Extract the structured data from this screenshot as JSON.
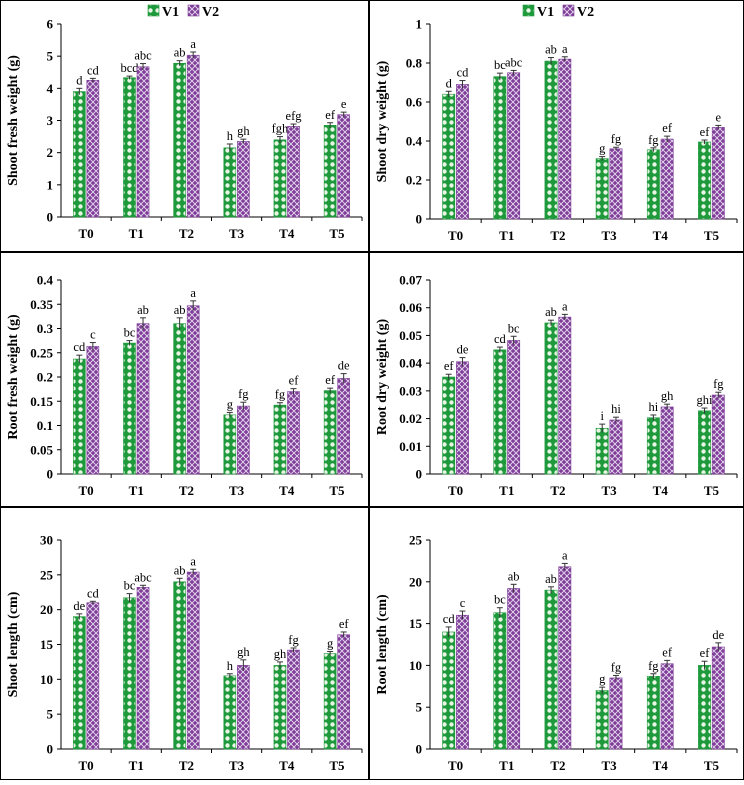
{
  "legend": {
    "series": [
      "V1",
      "V2"
    ]
  },
  "colors": {
    "v1_fill": "#1e9a3c",
    "v1_dot": "#e9f5e4",
    "v2_fill": "#7f3f98",
    "v2_dot": "#e6d6ef",
    "axis": "#000000",
    "frame": "#000000"
  },
  "chart_data": [
    {
      "type": "bar",
      "ylabel": "Shoot fresh weight (g)",
      "categories": [
        "T0",
        "T1",
        "T2",
        "T3",
        "T4",
        "T5"
      ],
      "ylim": [
        0,
        6
      ],
      "yticks": [
        0,
        1,
        2,
        3,
        4,
        5,
        6
      ],
      "tick_labels": [
        "0",
        "1",
        "2",
        "3",
        "4",
        "5",
        "6"
      ],
      "series": [
        {
          "name": "V1",
          "values": [
            3.9,
            4.33,
            4.78,
            2.15,
            2.4,
            2.85
          ],
          "errors": [
            0.1,
            0.05,
            0.08,
            0.12,
            0.1,
            0.08
          ],
          "letters": [
            "d",
            "bcd",
            "ab",
            "h",
            "fgh",
            "ef"
          ]
        },
        {
          "name": "V2",
          "values": [
            4.25,
            4.67,
            5.03,
            2.35,
            2.82,
            3.18
          ],
          "errors": [
            0.06,
            0.1,
            0.1,
            0.07,
            0.07,
            0.08
          ],
          "letters": [
            "cd",
            "abc",
            "a",
            "gh",
            "efg",
            "e"
          ]
        }
      ],
      "show_legend": true
    },
    {
      "type": "bar",
      "ylabel": "Shoot dry weight (g)",
      "categories": [
        "T0",
        "T1",
        "T2",
        "T3",
        "T4",
        "T5"
      ],
      "ylim": [
        0,
        1
      ],
      "yticks": [
        0,
        0.2,
        0.4,
        0.6,
        0.8,
        1
      ],
      "tick_labels": [
        "0",
        "0.2",
        "0.4",
        "0.6",
        "0.8",
        "1"
      ],
      "series": [
        {
          "name": "V1",
          "values": [
            0.64,
            0.73,
            0.81,
            0.31,
            0.355,
            0.395
          ],
          "errors": [
            0.015,
            0.018,
            0.018,
            0.01,
            0.01,
            0.01
          ],
          "letters": [
            "d",
            "bc",
            "ab",
            "g",
            "fg",
            "ef"
          ]
        },
        {
          "name": "V2",
          "values": [
            0.69,
            0.75,
            0.82,
            0.36,
            0.41,
            0.47
          ],
          "errors": [
            0.02,
            0.012,
            0.012,
            0.008,
            0.015,
            0.01
          ],
          "letters": [
            "cd",
            "abc",
            "a",
            "fg",
            "ef",
            "e"
          ]
        }
      ],
      "show_legend": true
    },
    {
      "type": "bar",
      "ylabel": "Root fresh weight (g)",
      "categories": [
        "T0",
        "T1",
        "T2",
        "T3",
        "T4",
        "T5"
      ],
      "ylim": [
        0,
        0.4
      ],
      "yticks": [
        0,
        0.05,
        0.1,
        0.15,
        0.2,
        0.25,
        0.3,
        0.35,
        0.4
      ],
      "tick_labels": [
        "0",
        "0.05",
        "0.1",
        "0.15",
        "0.2",
        "0.25",
        "0.3",
        "0.35",
        "0.4"
      ],
      "series": [
        {
          "name": "V1",
          "values": [
            0.237,
            0.27,
            0.31,
            0.122,
            0.142,
            0.172
          ],
          "errors": [
            0.008,
            0.005,
            0.012,
            0.005,
            0.005,
            0.005
          ],
          "letters": [
            "cd",
            "bc",
            "ab",
            "g",
            "fg",
            "ef"
          ]
        },
        {
          "name": "V2",
          "values": [
            0.263,
            0.31,
            0.347,
            0.14,
            0.17,
            0.197
          ],
          "errors": [
            0.008,
            0.012,
            0.01,
            0.008,
            0.006,
            0.01
          ],
          "letters": [
            "c",
            "ab",
            "a",
            "fg",
            "ef",
            "de"
          ]
        }
      ],
      "show_legend": false
    },
    {
      "type": "bar",
      "ylabel": "Root dry weight (g)",
      "categories": [
        "T0",
        "T1",
        "T2",
        "T3",
        "T4",
        "T5"
      ],
      "ylim": [
        0,
        0.07
      ],
      "yticks": [
        0,
        0.01,
        0.02,
        0.03,
        0.04,
        0.05,
        0.06,
        0.07
      ],
      "tick_labels": [
        "0",
        "0.01",
        "0.02",
        "0.03",
        "0.04",
        "0.05",
        "0.06",
        "0.07"
      ],
      "series": [
        {
          "name": "V1",
          "values": [
            0.035,
            0.0448,
            0.0545,
            0.0165,
            0.0203,
            0.0228
          ],
          "errors": [
            0.001,
            0.001,
            0.001,
            0.0015,
            0.001,
            0.001
          ],
          "letters": [
            "ef",
            "cd",
            "ab",
            "i",
            "hi",
            "ghi"
          ]
        },
        {
          "name": "V2",
          "values": [
            0.0405,
            0.0482,
            0.0566,
            0.0195,
            0.0242,
            0.0285
          ],
          "errors": [
            0.0015,
            0.0015,
            0.001,
            0.001,
            0.001,
            0.001
          ],
          "letters": [
            "de",
            "bc",
            "a",
            "hi",
            "gh",
            "fg"
          ]
        }
      ],
      "show_legend": false
    },
    {
      "type": "bar",
      "ylabel": "Shoot length (cm)",
      "categories": [
        "T0",
        "T1",
        "T2",
        "T3",
        "T4",
        "T5"
      ],
      "ylim": [
        0,
        30
      ],
      "yticks": [
        0,
        5,
        10,
        15,
        20,
        25,
        30
      ],
      "tick_labels": [
        "0",
        "5",
        "10",
        "15",
        "20",
        "25",
        "30"
      ],
      "series": [
        {
          "name": "V1",
          "values": [
            19.0,
            21.7,
            24.0,
            10.5,
            12.0,
            13.7
          ],
          "errors": [
            0.4,
            0.6,
            0.5,
            0.3,
            0.5,
            0.3
          ],
          "letters": [
            "de",
            "bc",
            "ab",
            "h",
            "gh",
            "g"
          ]
        },
        {
          "name": "V2",
          "values": [
            21.0,
            23.2,
            25.4,
            12.0,
            14.2,
            16.4
          ],
          "errors": [
            0.2,
            0.3,
            0.4,
            0.8,
            0.3,
            0.4
          ],
          "letters": [
            "cd",
            "abc",
            "a",
            "gh",
            "fg",
            "ef"
          ]
        }
      ],
      "show_legend": false
    },
    {
      "type": "bar",
      "ylabel": "Root length (cm)",
      "categories": [
        "T0",
        "T1",
        "T2",
        "T3",
        "T4",
        "T5"
      ],
      "ylim": [
        0,
        25
      ],
      "yticks": [
        0,
        5,
        10,
        15,
        20,
        25
      ],
      "tick_labels": [
        "0",
        "5",
        "10",
        "15",
        "20",
        "25"
      ],
      "series": [
        {
          "name": "V1",
          "values": [
            14.0,
            16.3,
            19.0,
            7.0,
            8.7,
            10.0
          ],
          "errors": [
            0.6,
            0.6,
            0.4,
            0.4,
            0.3,
            0.5
          ],
          "letters": [
            "cd",
            "bc",
            "ab",
            "g",
            "fg",
            "ef"
          ]
        },
        {
          "name": "V2",
          "values": [
            16.0,
            19.2,
            21.8,
            8.5,
            10.2,
            12.2
          ],
          "errors": [
            0.5,
            0.5,
            0.4,
            0.3,
            0.4,
            0.5
          ],
          "letters": [
            "c",
            "ab",
            "a",
            "fg",
            "ef",
            "de"
          ]
        }
      ],
      "show_legend": false
    }
  ]
}
